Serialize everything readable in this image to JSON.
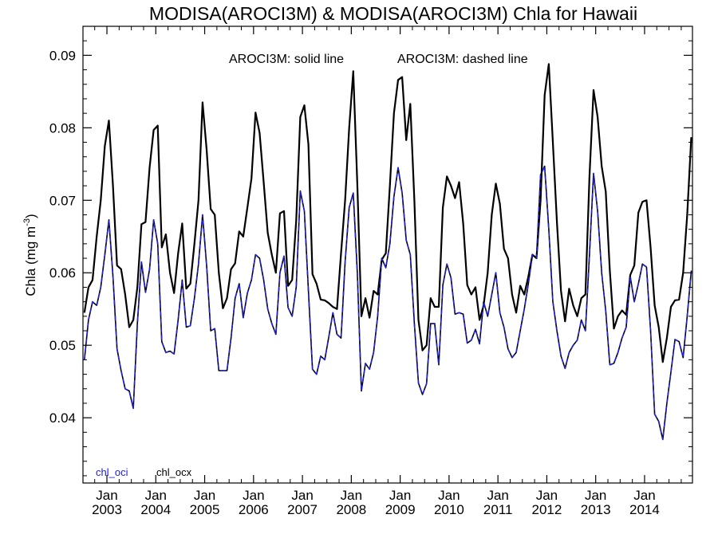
{
  "chart_data": {
    "type": "line",
    "title": "MODISA(AROCI3M) & MODISA(AROCI3M)  Chla for Hawaii",
    "subtitle_solid": "AROCI3M: solid line",
    "subtitle_dashed": "AROCI3M: dashed line",
    "xlabel": "",
    "ylabel": "Chla (mg m",
    "ylabel_sup": "-3",
    "ylabel_end": ")",
    "ylim": [
      0.031,
      0.094
    ],
    "xlim": [
      2002.51,
      2014.98
    ],
    "yticks": [
      0.04,
      0.05,
      0.06,
      0.07,
      0.08,
      0.09
    ],
    "ytick_labels": [
      "0.04",
      "0.05",
      "0.06",
      "0.07",
      "0.08",
      "0.09"
    ],
    "xtick_positions": [
      2003.0,
      2004.0,
      2005.0,
      2006.0,
      2007.0,
      2008.0,
      2009.0,
      2010.0,
      2011.0,
      2012.0,
      2013.0,
      2014.0
    ],
    "xtick_month": "Jan",
    "xtick_years": [
      "2003",
      "2004",
      "2005",
      "2006",
      "2007",
      "2008",
      "2009",
      "2010",
      "2011",
      "2012",
      "2013",
      "2014"
    ],
    "grid": false,
    "legend": "bottom-left",
    "x_start": 2002.54,
    "x_step": 0.08333,
    "series": [
      {
        "name": "chl_ocx",
        "color": "#000000",
        "style": "solid",
        "values": [
          0.0545,
          0.058,
          0.059,
          0.065,
          0.07,
          0.0775,
          0.081,
          0.072,
          0.061,
          0.0605,
          0.057,
          0.0525,
          0.0535,
          0.058,
          0.0667,
          0.067,
          0.0745,
          0.0797,
          0.0803,
          0.0635,
          0.0653,
          0.06,
          0.0572,
          0.0627,
          0.0668,
          0.0578,
          0.0585,
          0.064,
          0.07,
          0.0835,
          0.077,
          0.0688,
          0.068,
          0.06,
          0.0551,
          0.0565,
          0.0605,
          0.0613,
          0.0657,
          0.065,
          0.069,
          0.073,
          0.0821,
          0.0793,
          0.0725,
          0.0655,
          0.0625,
          0.06,
          0.0682,
          0.0685,
          0.0582,
          0.059,
          0.0672,
          0.0815,
          0.0831,
          0.0777,
          0.0598,
          0.0585,
          0.0563,
          0.0562,
          0.0558,
          0.0553,
          0.055,
          0.0627,
          0.07,
          0.08,
          0.0878,
          0.0722,
          0.054,
          0.0565,
          0.0538,
          0.0575,
          0.057,
          0.0618,
          0.0627,
          0.072,
          0.082,
          0.0866,
          0.087,
          0.0783,
          0.0833,
          0.07,
          0.0535,
          0.0493,
          0.05,
          0.0565,
          0.0553,
          0.0553,
          0.069,
          0.0733,
          0.072,
          0.0703,
          0.0725,
          0.0668,
          0.0583,
          0.057,
          0.058,
          0.0535,
          0.0555,
          0.06,
          0.068,
          0.0723,
          0.0695,
          0.0633,
          0.062,
          0.057,
          0.0545,
          0.0582,
          0.057,
          0.0595,
          0.0625,
          0.062,
          0.07,
          0.0845,
          0.0888,
          0.078,
          0.067,
          0.0575,
          0.0533,
          0.0578,
          0.0555,
          0.054,
          0.0565,
          0.057,
          0.0733,
          0.0852,
          0.0815,
          0.0747,
          0.0712,
          0.0603,
          0.0523,
          0.054,
          0.0548,
          0.0542,
          0.0597,
          0.061,
          0.0683,
          0.0698,
          0.07,
          0.0635,
          0.0555,
          0.0525,
          0.0477,
          0.051,
          0.0553,
          0.0562,
          0.0563,
          0.06,
          0.068,
          0.0787
        ]
      },
      {
        "name": "chl_oci",
        "color": "#2020d8",
        "style": "dashed",
        "values": [
          0.048,
          0.0535,
          0.056,
          0.0555,
          0.058,
          0.0625,
          0.0673,
          0.0595,
          0.0495,
          0.0465,
          0.044,
          0.0437,
          0.0413,
          0.053,
          0.0615,
          0.0573,
          0.0605,
          0.0673,
          0.064,
          0.0505,
          0.049,
          0.0492,
          0.0488,
          0.0535,
          0.059,
          0.0525,
          0.0527,
          0.0565,
          0.0612,
          0.068,
          0.061,
          0.052,
          0.0523,
          0.0465,
          0.0465,
          0.0465,
          0.051,
          0.0565,
          0.0585,
          0.0538,
          0.0572,
          0.059,
          0.0625,
          0.062,
          0.059,
          0.055,
          0.053,
          0.0515,
          0.06,
          0.0623,
          0.0552,
          0.054,
          0.058,
          0.0713,
          0.0685,
          0.0575,
          0.0467,
          0.046,
          0.0485,
          0.048,
          0.0512,
          0.0545,
          0.0515,
          0.051,
          0.0615,
          0.069,
          0.071,
          0.06,
          0.0437,
          0.0475,
          0.0467,
          0.049,
          0.054,
          0.062,
          0.0607,
          0.064,
          0.0705,
          0.0745,
          0.071,
          0.0645,
          0.0625,
          0.053,
          0.0448,
          0.0432,
          0.0447,
          0.053,
          0.053,
          0.0473,
          0.0583,
          0.0612,
          0.0593,
          0.0543,
          0.0545,
          0.0543,
          0.0503,
          0.0507,
          0.0522,
          0.0502,
          0.056,
          0.054,
          0.057,
          0.06,
          0.0545,
          0.0525,
          0.0495,
          0.0483,
          0.049,
          0.052,
          0.055,
          0.0585,
          0.0625,
          0.062,
          0.0735,
          0.0747,
          0.066,
          0.056,
          0.052,
          0.0485,
          0.0468,
          0.049,
          0.05,
          0.0507,
          0.0535,
          0.052,
          0.0625,
          0.0737,
          0.0685,
          0.06,
          0.0547,
          0.0473,
          0.0475,
          0.049,
          0.051,
          0.0525,
          0.0595,
          0.056,
          0.0585,
          0.0612,
          0.0608,
          0.052,
          0.0405,
          0.0395,
          0.037,
          0.042,
          0.0463,
          0.0508,
          0.0505,
          0.0483,
          0.054,
          0.0603
        ]
      }
    ]
  }
}
